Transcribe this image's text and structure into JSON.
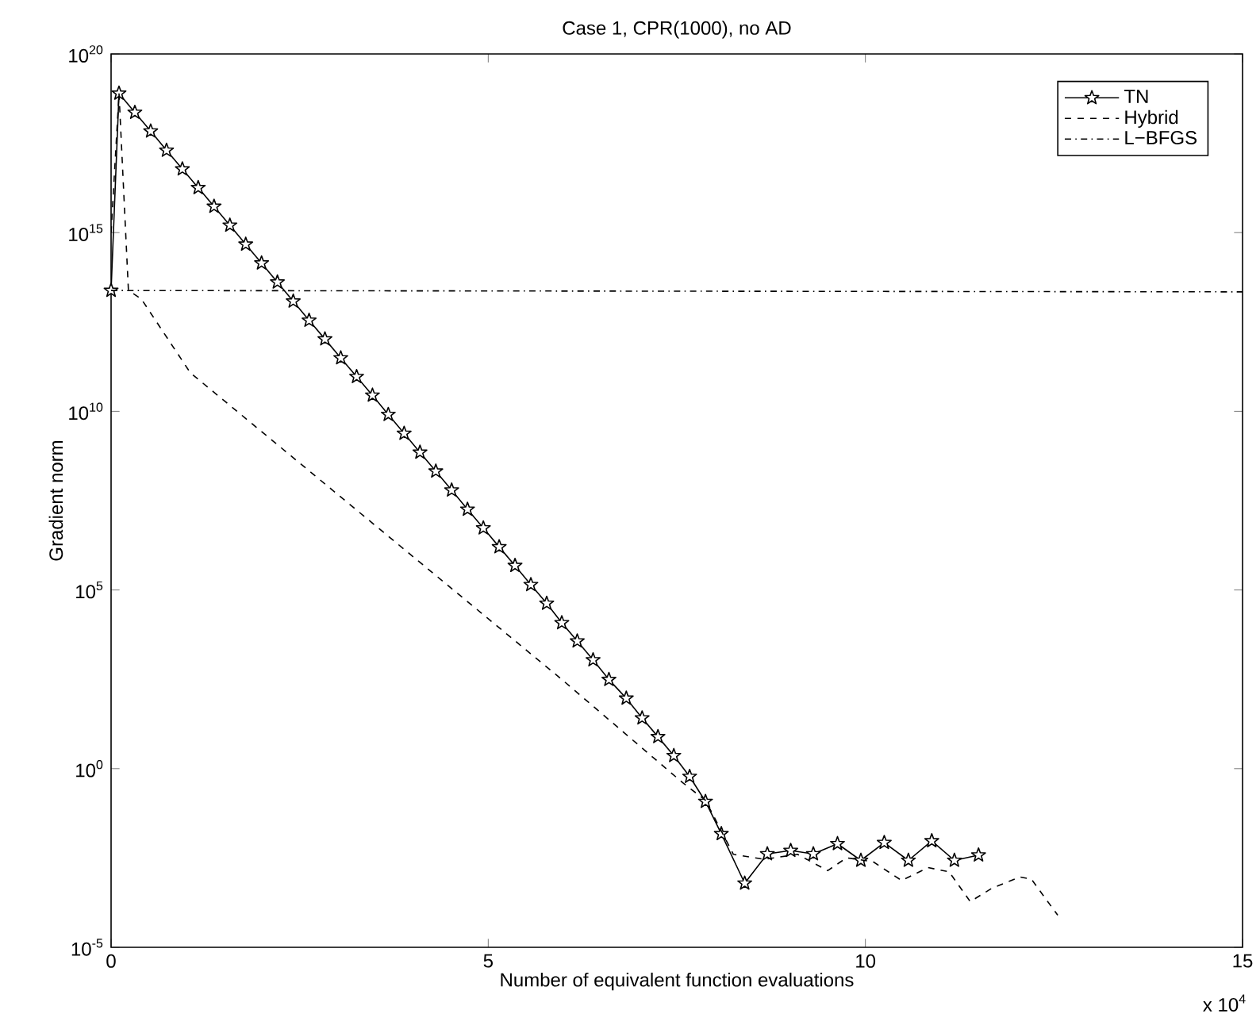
{
  "chart_data": {
    "type": "line",
    "title": "Case 1, CPR(1000), no AD",
    "xlabel": "Number of equivalent function evaluations",
    "ylabel": "Gradient norm",
    "annotations": [
      "x 10$^{4}$"
    ],
    "log": "y",
    "grid": false,
    "legend": "top right",
    "xlim": [
      0,
      15
    ],
    "xticks": [
      0,
      5,
      10,
      15
    ],
    "ylim": [
      1e-05,
      1e+20
    ],
    "yticks": [
      {
        "value": 1e-05,
        "label": "10$^{-5}$"
      },
      {
        "value": 1,
        "label": "10$^{0}$"
      },
      {
        "value": 100000.0,
        "label": "10$^{5}$"
      },
      {
        "value": 10000000000.0,
        "label": "10$^{10}$"
      },
      {
        "value": 1000000000000000.0,
        "label": "10$^{15}$"
      },
      {
        "value": 1e+20,
        "label": "10$^{20}$"
      }
    ],
    "series": [
      {
        "name": "TN",
        "color": "#000000",
        "marker": "star",
        "line_style": "solid",
        "x": [
          0,
          0.105,
          0.315,
          0.525,
          0.735,
          0.945,
          1.155,
          1.365,
          1.575,
          1.785,
          1.995,
          2.205,
          2.415,
          2.625,
          2.835,
          3.045,
          3.255,
          3.465,
          3.675,
          3.885,
          4.095,
          4.305,
          4.515,
          4.725,
          4.935,
          5.145,
          5.355,
          5.565,
          5.775,
          5.975,
          6.18,
          6.39,
          6.6,
          6.83,
          7.04,
          7.25,
          7.46,
          7.67,
          7.88,
          8.09,
          8.4,
          8.7,
          9.01,
          9.31,
          9.63,
          9.94,
          10.25,
          10.57,
          10.88,
          11.18,
          11.5
        ],
        "values": [
          24000000000000.0,
          7.9e+18,
          2.3e+18,
          6.9e+17,
          2e+17,
          6e+16,
          1.8e+16,
          5400000000000000.0,
          1600000000000000.0,
          470000000000000.0,
          140000000000000.0,
          41000000000000.0,
          12000000000000.0,
          3500000000000.0,
          1050000000000.0,
          310000000000.0,
          93000000000.0,
          28000000000.0,
          8100000000.0,
          2400000000.0,
          710000000.0,
          210000000.0,
          62000000.0,
          18000000.0,
          5400000.0,
          1600000.0,
          480000.0,
          140000.0,
          42000.0,
          12000.0,
          3700.0,
          1100.0,
          310,
          93,
          26,
          7.8,
          2.3,
          0.6,
          0.12,
          0.015,
          0.00062,
          0.0041,
          0.0051,
          0.0041,
          0.0079,
          0.0027,
          0.0085,
          0.0027,
          0.0095,
          0.0027,
          0.0038
        ]
      },
      {
        "name": "Hybrid",
        "color": "#000000",
        "marker": "none",
        "line_style": "dashed",
        "x": [
          0,
          0.105,
          0.23,
          0.4,
          1.05,
          5.97,
          7.58,
          7.88,
          8.25,
          8.66,
          9.1,
          9.5,
          9.75,
          10.1,
          10.48,
          10.83,
          11.11,
          11.39,
          11.67,
          12.05,
          12.2,
          12.55
        ],
        "values": [
          1000000000000000.0,
          7.9e+18,
          24000000000000.0,
          14000000000000.0,
          120000000000.0,
          320,
          0.4,
          0.13,
          0.004,
          0.0029,
          0.004,
          0.0014,
          0.0032,
          0.0025,
          0.00074,
          0.0017,
          0.0013,
          0.00019,
          0.00044,
          0.00093,
          0.00081,
          7.9e-05
        ]
      },
      {
        "name": "L−BFGS",
        "color": "#000000",
        "marker": "none",
        "line_style": "dashdot",
        "x": [
          0,
          15
        ],
        "values": [
          24000000000000.0,
          22000000000000.0
        ]
      }
    ]
  }
}
